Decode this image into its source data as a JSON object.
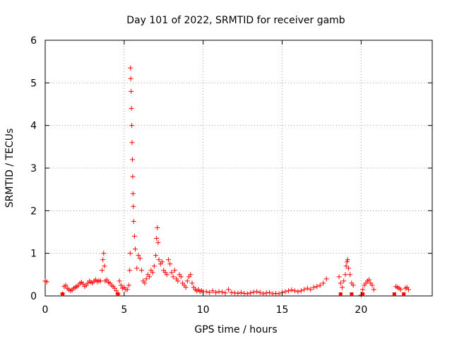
{
  "chart_data": {
    "type": "scatter",
    "title": "Day 101 of 2022, SRMTID for receiver gamb",
    "xlabel": "GPS time / hours",
    "ylabel": "SRMTID / TECUs",
    "xlim": [
      0,
      24.5
    ],
    "ylim": [
      0,
      6
    ],
    "x_ticks": [
      "0",
      "5",
      "10",
      "15",
      "20"
    ],
    "y_ticks": [
      "0",
      "1",
      "2",
      "3",
      "4",
      "5",
      "6"
    ],
    "grid": true,
    "marker": "+",
    "marker_color": "#ff0000",
    "series": [
      {
        "name": "SRMTID",
        "x": [
          0.0,
          0.1,
          1.1,
          1.2,
          1.3,
          1.4,
          1.5,
          1.6,
          1.7,
          1.8,
          1.9,
          2.0,
          2.1,
          2.2,
          2.3,
          2.4,
          2.5,
          2.6,
          2.7,
          2.8,
          2.9,
          3.0,
          3.1,
          3.2,
          3.3,
          3.4,
          3.5,
          3.6,
          3.65,
          3.7,
          3.75,
          3.8,
          3.9,
          4.0,
          4.1,
          4.2,
          4.3,
          4.4,
          4.5,
          4.6,
          4.7,
          4.8,
          4.9,
          5.0,
          5.1,
          5.2,
          5.3,
          5.35,
          5.38,
          5.4,
          5.42,
          5.44,
          5.46,
          5.48,
          5.5,
          5.52,
          5.54,
          5.56,
          5.58,
          5.6,
          5.65,
          5.7,
          5.8,
          5.9,
          6.0,
          6.1,
          6.2,
          6.3,
          6.4,
          6.5,
          6.6,
          6.7,
          6.8,
          6.9,
          7.0,
          7.05,
          7.1,
          7.15,
          7.2,
          7.3,
          7.4,
          7.5,
          7.6,
          7.7,
          7.8,
          7.9,
          8.0,
          8.1,
          8.2,
          8.3,
          8.4,
          8.5,
          8.6,
          8.7,
          8.8,
          8.9,
          9.0,
          9.1,
          9.2,
          9.3,
          9.4,
          9.5,
          9.6,
          9.7,
          9.8,
          9.9,
          10.0,
          10.2,
          10.4,
          10.6,
          10.8,
          11.0,
          11.2,
          11.4,
          11.6,
          11.8,
          12.0,
          12.2,
          12.4,
          12.6,
          12.8,
          13.0,
          13.2,
          13.4,
          13.6,
          13.8,
          14.0,
          14.2,
          14.4,
          14.6,
          14.8,
          15.0,
          15.2,
          15.4,
          15.6,
          15.8,
          16.0,
          16.2,
          16.4,
          16.6,
          16.8,
          17.0,
          17.2,
          17.4,
          17.6,
          17.8,
          18.6,
          18.7,
          18.8,
          18.9,
          19.0,
          19.05,
          19.1,
          19.15,
          19.2,
          19.3,
          19.4,
          19.5,
          20.0,
          20.1,
          20.2,
          20.3,
          20.4,
          20.5,
          20.6,
          20.7,
          20.8,
          22.2,
          22.3,
          22.4,
          22.5,
          22.8,
          22.9,
          23.0
        ],
        "y": [
          0.35,
          0.33,
          0.05,
          0.22,
          0.25,
          0.18,
          0.15,
          0.12,
          0.14,
          0.18,
          0.2,
          0.22,
          0.25,
          0.3,
          0.32,
          0.28,
          0.22,
          0.25,
          0.3,
          0.35,
          0.32,
          0.3,
          0.35,
          0.38,
          0.33,
          0.36,
          0.35,
          0.6,
          0.85,
          1.0,
          0.7,
          0.35,
          0.38,
          0.32,
          0.3,
          0.25,
          0.22,
          0.18,
          0.12,
          0.05,
          0.35,
          0.25,
          0.18,
          0.2,
          0.15,
          0.15,
          0.25,
          0.6,
          1.0,
          5.35,
          5.1,
          4.8,
          4.4,
          4.0,
          3.6,
          3.2,
          2.8,
          2.4,
          2.1,
          1.75,
          1.4,
          1.1,
          0.65,
          0.95,
          0.88,
          0.6,
          0.35,
          0.3,
          0.4,
          0.5,
          0.45,
          0.6,
          0.55,
          0.7,
          0.95,
          1.35,
          1.6,
          1.25,
          0.85,
          0.75,
          0.8,
          0.6,
          0.55,
          0.5,
          0.85,
          0.75,
          0.55,
          0.45,
          0.6,
          0.4,
          0.35,
          0.5,
          0.45,
          0.3,
          0.25,
          0.2,
          0.35,
          0.45,
          0.5,
          0.3,
          0.2,
          0.15,
          0.12,
          0.15,
          0.1,
          0.12,
          0.1,
          0.1,
          0.08,
          0.12,
          0.08,
          0.1,
          0.09,
          0.07,
          0.15,
          0.08,
          0.07,
          0.06,
          0.08,
          0.06,
          0.05,
          0.07,
          0.09,
          0.1,
          0.08,
          0.05,
          0.07,
          0.08,
          0.05,
          0.06,
          0.05,
          0.08,
          0.1,
          0.12,
          0.14,
          0.12,
          0.1,
          0.12,
          0.15,
          0.18,
          0.15,
          0.2,
          0.22,
          0.25,
          0.3,
          0.4,
          0.45,
          0.3,
          0.2,
          0.35,
          0.5,
          0.7,
          0.8,
          0.85,
          0.65,
          0.5,
          0.3,
          0.25,
          0.02,
          0.15,
          0.25,
          0.3,
          0.35,
          0.38,
          0.3,
          0.25,
          0.15,
          0.22,
          0.2,
          0.18,
          0.15,
          0.18,
          0.2,
          0.15
        ],
        "zero_markers_x": [
          1.1,
          4.6,
          18.7,
          19.4,
          20.1,
          22.1,
          22.7
        ]
      }
    ]
  }
}
